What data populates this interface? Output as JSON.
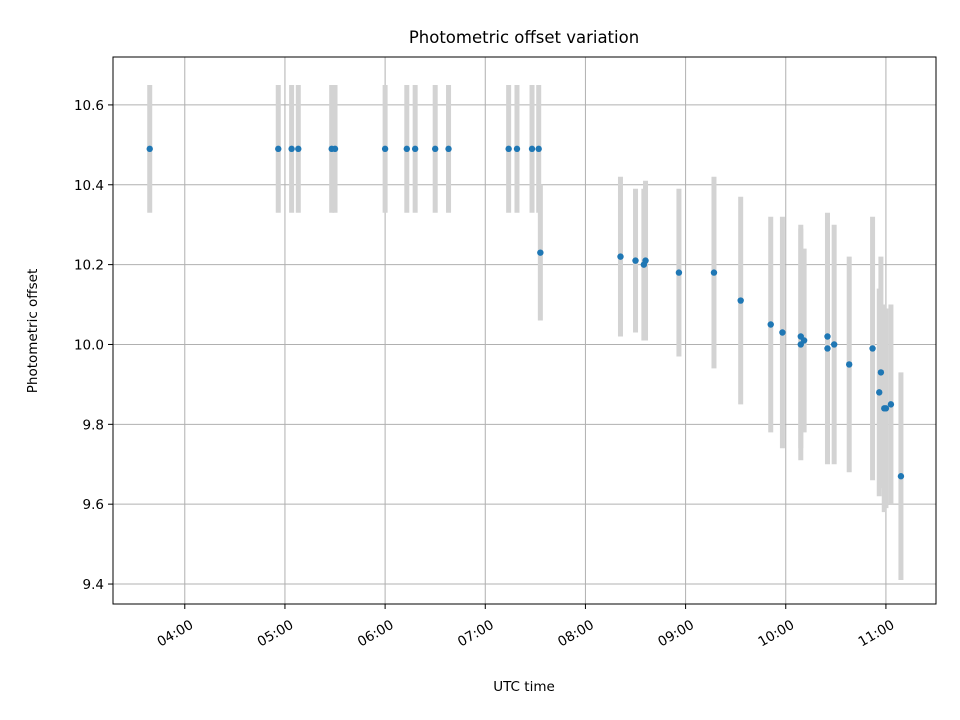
{
  "chart_data": {
    "type": "scatter",
    "title": "Photometric offset variation",
    "xlabel": "UTC time",
    "ylabel": "Photometric offset",
    "x_ticks": [
      "04:00",
      "05:00",
      "06:00",
      "07:00",
      "08:00",
      "09:00",
      "10:00",
      "11:00"
    ],
    "y_ticks": [
      "9.4",
      "9.6",
      "9.8",
      "10.0",
      "10.2",
      "10.4",
      "10.6"
    ],
    "xlim": [
      "03:17",
      "11:30"
    ],
    "ylim": [
      9.35,
      10.72
    ],
    "grid": true,
    "colors": {
      "point": "#1f77b4",
      "errorbar": "#d3d3d3"
    },
    "points": [
      {
        "x": "03:39",
        "y": 10.49,
        "err": 0.16
      },
      {
        "x": "04:56",
        "y": 10.49,
        "err": 0.16
      },
      {
        "x": "05:04",
        "y": 10.49,
        "err": 0.16
      },
      {
        "x": "05:08",
        "y": 10.49,
        "err": 0.16
      },
      {
        "x": "05:28",
        "y": 10.49,
        "err": 0.16
      },
      {
        "x": "05:30",
        "y": 10.49,
        "err": 0.16
      },
      {
        "x": "06:00",
        "y": 10.49,
        "err": 0.16
      },
      {
        "x": "06:13",
        "y": 10.49,
        "err": 0.16
      },
      {
        "x": "06:18",
        "y": 10.49,
        "err": 0.16
      },
      {
        "x": "06:30",
        "y": 10.49,
        "err": 0.16
      },
      {
        "x": "06:38",
        "y": 10.49,
        "err": 0.16
      },
      {
        "x": "07:14",
        "y": 10.49,
        "err": 0.16
      },
      {
        "x": "07:19",
        "y": 10.49,
        "err": 0.16
      },
      {
        "x": "07:28",
        "y": 10.49,
        "err": 0.16
      },
      {
        "x": "07:32",
        "y": 10.49,
        "err": 0.16
      },
      {
        "x": "07:33",
        "y": 10.23,
        "err": 0.17
      },
      {
        "x": "08:21",
        "y": 10.22,
        "err": 0.2
      },
      {
        "x": "08:30",
        "y": 10.21,
        "err": 0.18
      },
      {
        "x": "08:35",
        "y": 10.2,
        "err": 0.19
      },
      {
        "x": "08:36",
        "y": 10.21,
        "err": 0.2
      },
      {
        "x": "08:56",
        "y": 10.18,
        "err": 0.21
      },
      {
        "x": "09:17",
        "y": 10.18,
        "err": 0.24
      },
      {
        "x": "09:33",
        "y": 10.11,
        "err": 0.26
      },
      {
        "x": "09:51",
        "y": 10.05,
        "err": 0.27
      },
      {
        "x": "09:58",
        "y": 10.03,
        "err": 0.29
      },
      {
        "x": "10:09",
        "y": 10.0,
        "err": 0.29
      },
      {
        "x": "10:09",
        "y": 10.02,
        "err": 0.28
      },
      {
        "x": "10:11",
        "y": 10.01,
        "err": 0.23
      },
      {
        "x": "10:25",
        "y": 10.02,
        "err": 0.31
      },
      {
        "x": "10:25",
        "y": 9.99,
        "err": 0.29
      },
      {
        "x": "10:29",
        "y": 10.0,
        "err": 0.3
      },
      {
        "x": "10:38",
        "y": 9.95,
        "err": 0.27
      },
      {
        "x": "10:52",
        "y": 9.99,
        "err": 0.33
      },
      {
        "x": "10:56",
        "y": 9.88,
        "err": 0.26
      },
      {
        "x": "10:57",
        "y": 9.93,
        "err": 0.29
      },
      {
        "x": "10:59",
        "y": 9.84,
        "err": 0.26
      },
      {
        "x": "11:00",
        "y": 9.84,
        "err": 0.25
      },
      {
        "x": "11:03",
        "y": 9.85,
        "err": 0.25
      },
      {
        "x": "11:09",
        "y": 9.67,
        "err": 0.26
      }
    ]
  }
}
